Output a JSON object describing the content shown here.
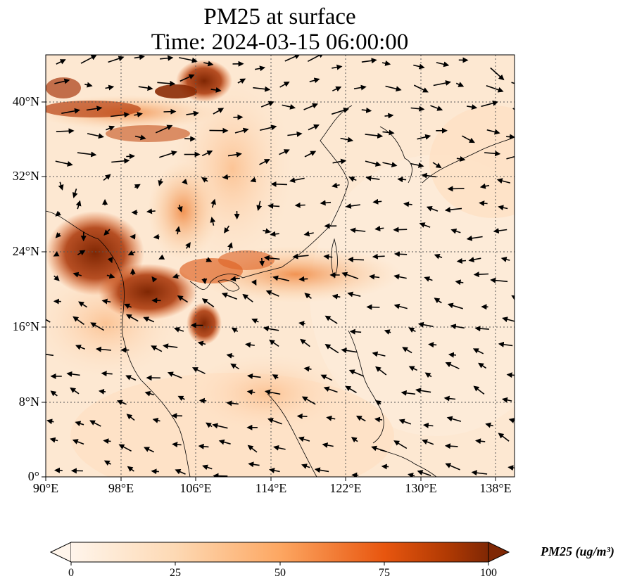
{
  "title": {
    "line1": "PM25 at surface",
    "line2": "Time: 2024-03-15 06:00:00"
  },
  "map": {
    "lon_range": [
      90,
      140
    ],
    "lat_range": [
      0,
      45
    ],
    "gridlines": "dotted",
    "x_ticks": [
      "90°E",
      "98°E",
      "106°E",
      "114°E",
      "122°E",
      "130°E",
      "138°E"
    ],
    "y_ticks": [
      "0°",
      "8°N",
      "16°N",
      "24°N",
      "32°N",
      "40°N"
    ],
    "field": "PM25 concentration (shaded)",
    "overlay": "wind vectors (arrows)"
  },
  "colorbar": {
    "title": "PM25 (ug/m³)",
    "ticks": [
      "0",
      "25",
      "50",
      "75",
      "100"
    ],
    "colormap": [
      "#fff5eb",
      "#fdd9b4",
      "#fda762",
      "#f3701b",
      "#c54102",
      "#7f2704"
    ],
    "extend": "both"
  }
}
